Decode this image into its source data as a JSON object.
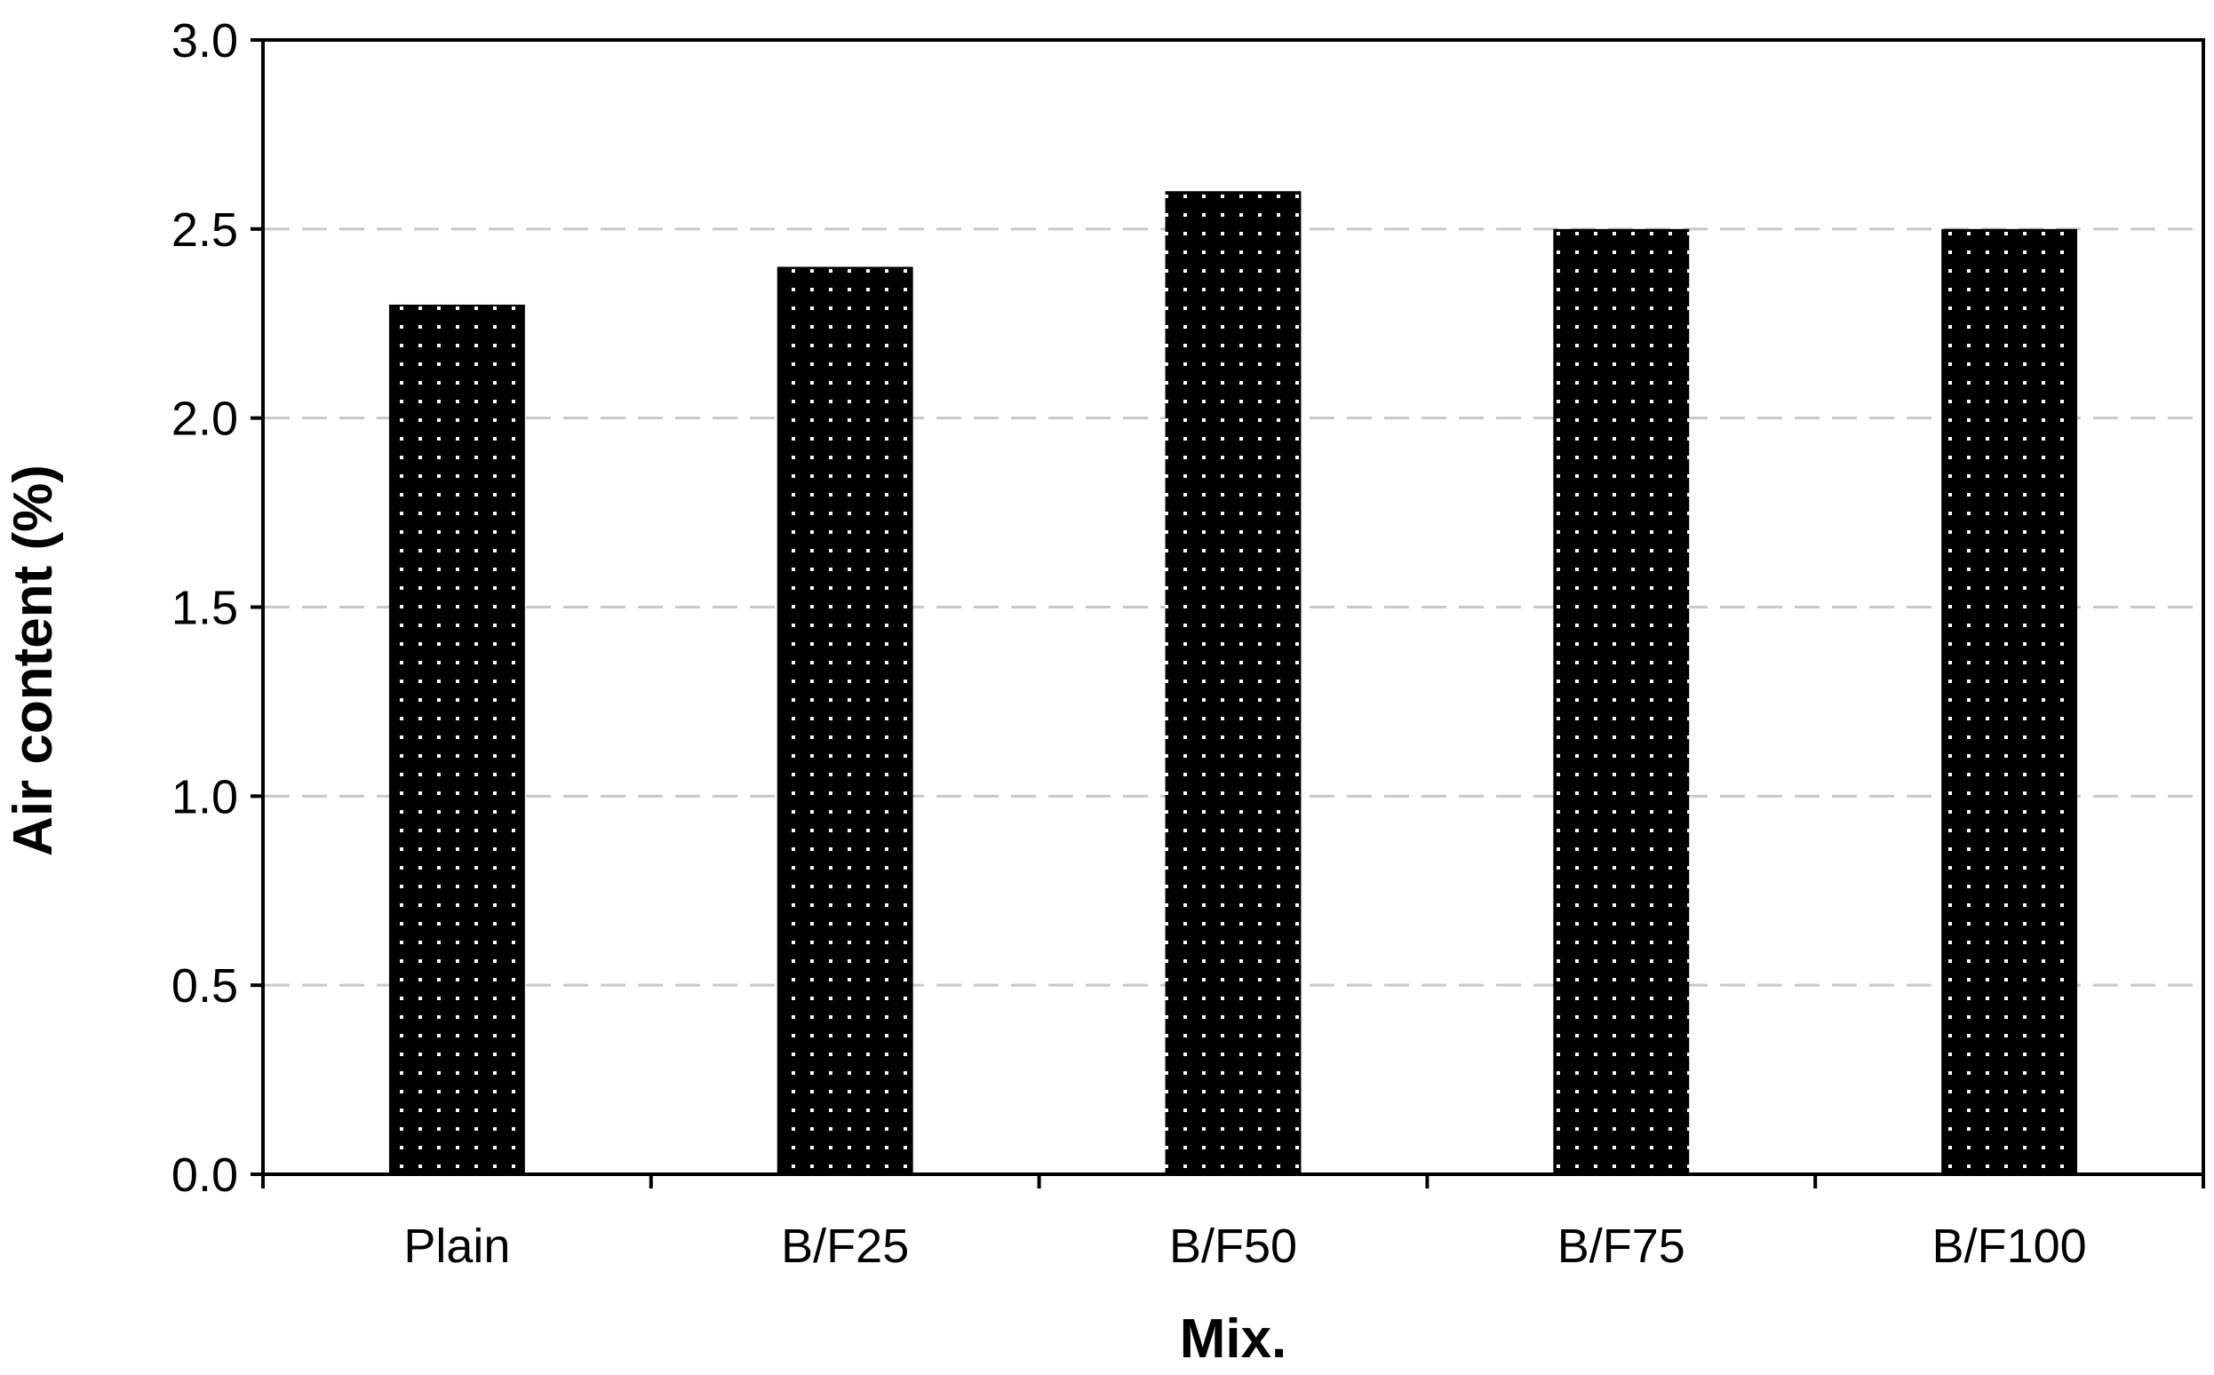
{
  "chart_data": {
    "type": "bar",
    "categories": [
      "Plain",
      "B/F25",
      "B/F50",
      "B/F75",
      "B/F100"
    ],
    "values": [
      2.3,
      2.4,
      2.6,
      2.5,
      2.5
    ],
    "title": "",
    "xlabel": "Mix.",
    "ylabel": "Air content (%)",
    "ylim": [
      0,
      3.0
    ],
    "yticks": [
      "0.0",
      "0.5",
      "1.0",
      "1.5",
      "2.0",
      "2.5",
      "3.0"
    ],
    "grid": "horizontal-dashed",
    "legend": "none",
    "colors": {
      "bar_fill": "#000000",
      "bar_dots": "#ffffff",
      "gridline": "#c8c8c8",
      "axis": "#000000"
    }
  }
}
